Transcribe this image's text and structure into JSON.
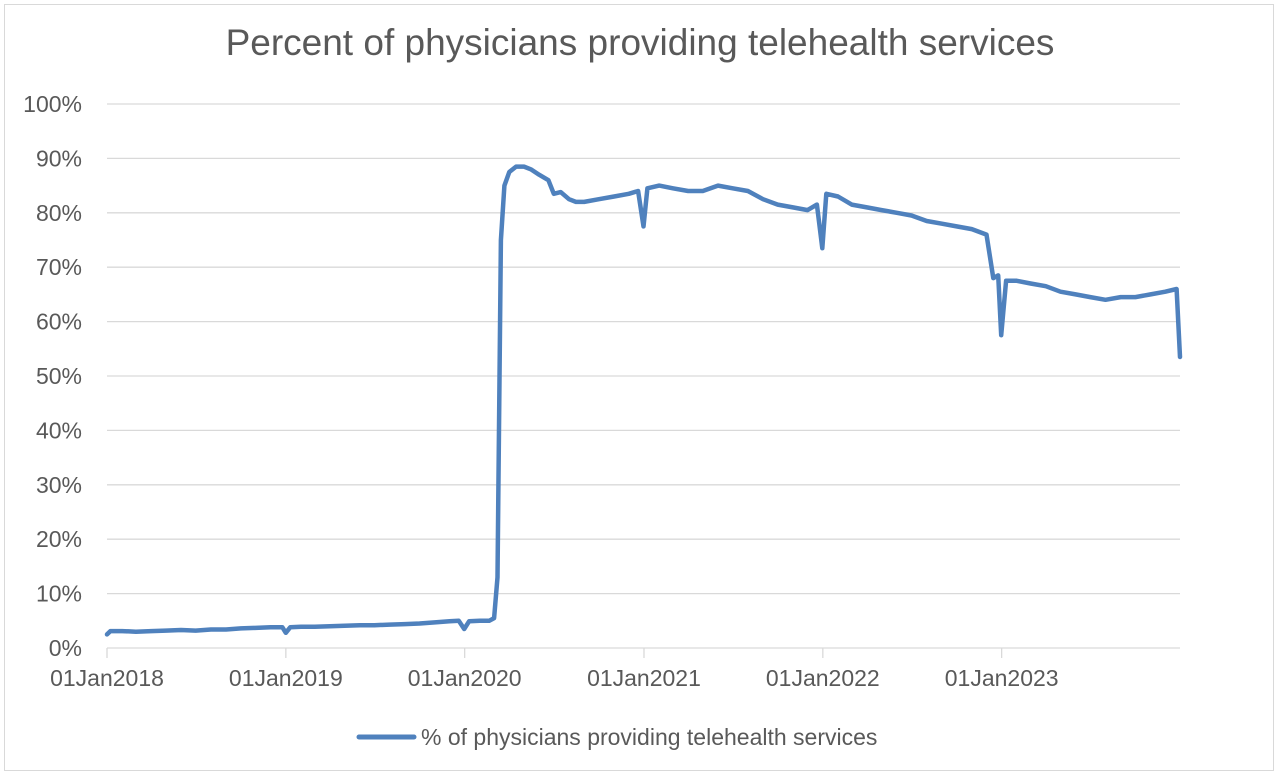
{
  "chart_data": {
    "type": "line",
    "title": "Percent of physicians providing telehealth services",
    "xlabel": "",
    "ylabel": "",
    "x_axis": {
      "type": "date",
      "range": [
        "2018-01-01",
        "2023-12-31"
      ],
      "tick_dates": [
        "2018-01-01",
        "2019-01-01",
        "2020-01-01",
        "2021-01-01",
        "2022-01-01",
        "2023-01-01"
      ],
      "tick_labels": [
        "01Jan2018",
        "01Jan2019",
        "01Jan2020",
        "01Jan2021",
        "01Jan2022",
        "01Jan2023"
      ]
    },
    "y_axis": {
      "range": [
        0,
        100
      ],
      "tick_values": [
        0,
        10,
        20,
        30,
        40,
        50,
        60,
        70,
        80,
        90,
        100
      ],
      "tick_labels": [
        "0%",
        "10%",
        "20%",
        "30%",
        "40%",
        "50%",
        "60%",
        "70%",
        "80%",
        "90%",
        "100%"
      ]
    },
    "grid": {
      "horizontal": true,
      "vertical": false
    },
    "legend_position": "bottom",
    "series": [
      {
        "name": "% of physicians providing telehealth services",
        "color": "#4f81bd",
        "points": [
          [
            "2018-01-01",
            2.5
          ],
          [
            "2018-01-08",
            3.1
          ],
          [
            "2018-02-01",
            3.1
          ],
          [
            "2018-03-01",
            3.0
          ],
          [
            "2018-04-01",
            3.1
          ],
          [
            "2018-05-01",
            3.2
          ],
          [
            "2018-06-01",
            3.3
          ],
          [
            "2018-07-01",
            3.2
          ],
          [
            "2018-08-01",
            3.4
          ],
          [
            "2018-09-01",
            3.4
          ],
          [
            "2018-10-01",
            3.6
          ],
          [
            "2018-11-01",
            3.7
          ],
          [
            "2018-12-01",
            3.8
          ],
          [
            "2018-12-25",
            3.8
          ],
          [
            "2019-01-01",
            2.8
          ],
          [
            "2019-01-10",
            3.8
          ],
          [
            "2019-02-01",
            3.9
          ],
          [
            "2019-03-01",
            3.9
          ],
          [
            "2019-04-01",
            4.0
          ],
          [
            "2019-05-01",
            4.1
          ],
          [
            "2019-06-01",
            4.2
          ],
          [
            "2019-07-01",
            4.2
          ],
          [
            "2019-08-01",
            4.3
          ],
          [
            "2019-09-01",
            4.4
          ],
          [
            "2019-10-01",
            4.5
          ],
          [
            "2019-11-01",
            4.7
          ],
          [
            "2019-12-01",
            4.9
          ],
          [
            "2019-12-20",
            5.0
          ],
          [
            "2019-12-31",
            3.5
          ],
          [
            "2020-01-10",
            4.9
          ],
          [
            "2020-02-01",
            5.0
          ],
          [
            "2020-02-20",
            5.0
          ],
          [
            "2020-03-01",
            5.5
          ],
          [
            "2020-03-08",
            13.0
          ],
          [
            "2020-03-15",
            75.0
          ],
          [
            "2020-03-22",
            85.0
          ],
          [
            "2020-04-01",
            87.5
          ],
          [
            "2020-04-15",
            88.5
          ],
          [
            "2020-05-01",
            88.5
          ],
          [
            "2020-05-15",
            88.0
          ],
          [
            "2020-06-01",
            87.0
          ],
          [
            "2020-06-20",
            86.0
          ],
          [
            "2020-07-01",
            83.5
          ],
          [
            "2020-07-15",
            83.8
          ],
          [
            "2020-08-01",
            82.5
          ],
          [
            "2020-08-15",
            82.0
          ],
          [
            "2020-09-01",
            82.0
          ],
          [
            "2020-10-01",
            82.5
          ],
          [
            "2020-11-01",
            83.0
          ],
          [
            "2020-12-01",
            83.5
          ],
          [
            "2020-12-20",
            84.0
          ],
          [
            "2020-12-31",
            77.5
          ],
          [
            "2021-01-08",
            84.5
          ],
          [
            "2021-02-01",
            85.0
          ],
          [
            "2021-03-01",
            84.5
          ],
          [
            "2021-04-01",
            84.0
          ],
          [
            "2021-05-01",
            84.0
          ],
          [
            "2021-06-01",
            85.0
          ],
          [
            "2021-07-01",
            84.5
          ],
          [
            "2021-08-01",
            84.0
          ],
          [
            "2021-09-01",
            82.5
          ],
          [
            "2021-10-01",
            81.5
          ],
          [
            "2021-11-01",
            81.0
          ],
          [
            "2021-12-01",
            80.5
          ],
          [
            "2021-12-20",
            81.5
          ],
          [
            "2021-12-31",
            73.5
          ],
          [
            "2022-01-08",
            83.5
          ],
          [
            "2022-02-01",
            83.0
          ],
          [
            "2022-03-01",
            81.5
          ],
          [
            "2022-04-01",
            81.0
          ],
          [
            "2022-05-01",
            80.5
          ],
          [
            "2022-06-01",
            80.0
          ],
          [
            "2022-07-01",
            79.5
          ],
          [
            "2022-08-01",
            78.5
          ],
          [
            "2022-09-01",
            78.0
          ],
          [
            "2022-10-01",
            77.5
          ],
          [
            "2022-11-01",
            77.0
          ],
          [
            "2022-12-01",
            76.0
          ],
          [
            "2022-12-15",
            68.0
          ],
          [
            "2022-12-25",
            68.5
          ],
          [
            "2022-12-31",
            57.5
          ],
          [
            "2023-01-10",
            67.5
          ],
          [
            "2023-02-01",
            67.5
          ],
          [
            "2023-03-01",
            67.0
          ],
          [
            "2023-04-01",
            66.5
          ],
          [
            "2023-05-01",
            65.5
          ],
          [
            "2023-06-01",
            65.0
          ],
          [
            "2023-07-01",
            64.5
          ],
          [
            "2023-08-01",
            64.0
          ],
          [
            "2023-09-01",
            64.5
          ],
          [
            "2023-10-01",
            64.5
          ],
          [
            "2023-11-01",
            65.0
          ],
          [
            "2023-12-01",
            65.5
          ],
          [
            "2023-12-24",
            66.0
          ],
          [
            "2023-12-31",
            53.5
          ]
        ]
      }
    ]
  }
}
